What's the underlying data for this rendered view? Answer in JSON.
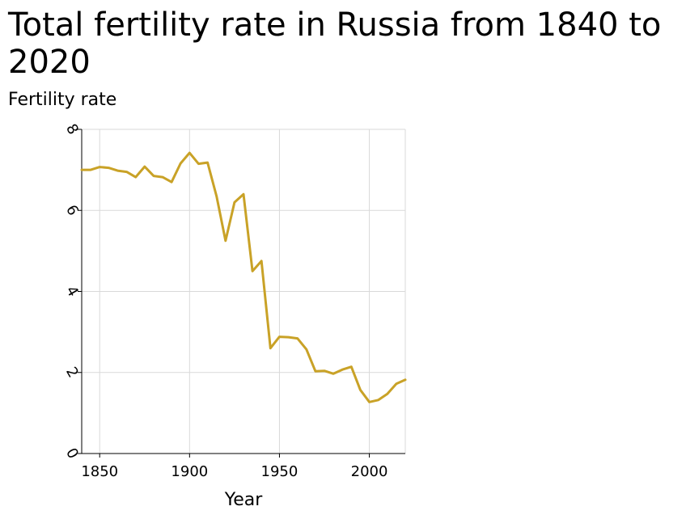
{
  "chart_data": {
    "type": "line",
    "title": "Total fertility rate in Russia from 1840 to 2020",
    "xlabel": "Year",
    "ylabel": "Fertility rate",
    "xlim": [
      1840,
      2020
    ],
    "ylim": [
      0,
      8
    ],
    "xticks": [
      1850,
      1900,
      1950,
      2000
    ],
    "yticks": [
      0,
      2,
      4,
      6,
      8
    ],
    "grid": true,
    "legend": "none",
    "series": [
      {
        "color": "#c9a227",
        "x": [
          1840,
          1845,
          1850,
          1855,
          1860,
          1865,
          1870,
          1875,
          1880,
          1885,
          1890,
          1895,
          1900,
          1905,
          1910,
          1915,
          1920,
          1925,
          1930,
          1935,
          1940,
          1945,
          1950,
          1955,
          1960,
          1965,
          1970,
          1975,
          1980,
          1985,
          1990,
          1995,
          2000,
          2005,
          2010,
          2015,
          2020
        ],
        "y": [
          7.0,
          7.0,
          7.07,
          7.05,
          6.98,
          6.95,
          6.82,
          7.08,
          6.85,
          6.82,
          6.7,
          7.16,
          7.42,
          7.15,
          7.18,
          6.35,
          5.25,
          6.2,
          6.4,
          4.5,
          4.75,
          2.6,
          2.88,
          2.87,
          2.84,
          2.57,
          2.03,
          2.04,
          1.97,
          2.07,
          2.14,
          1.57,
          1.27,
          1.32,
          1.47,
          1.72,
          1.82
        ]
      }
    ]
  }
}
